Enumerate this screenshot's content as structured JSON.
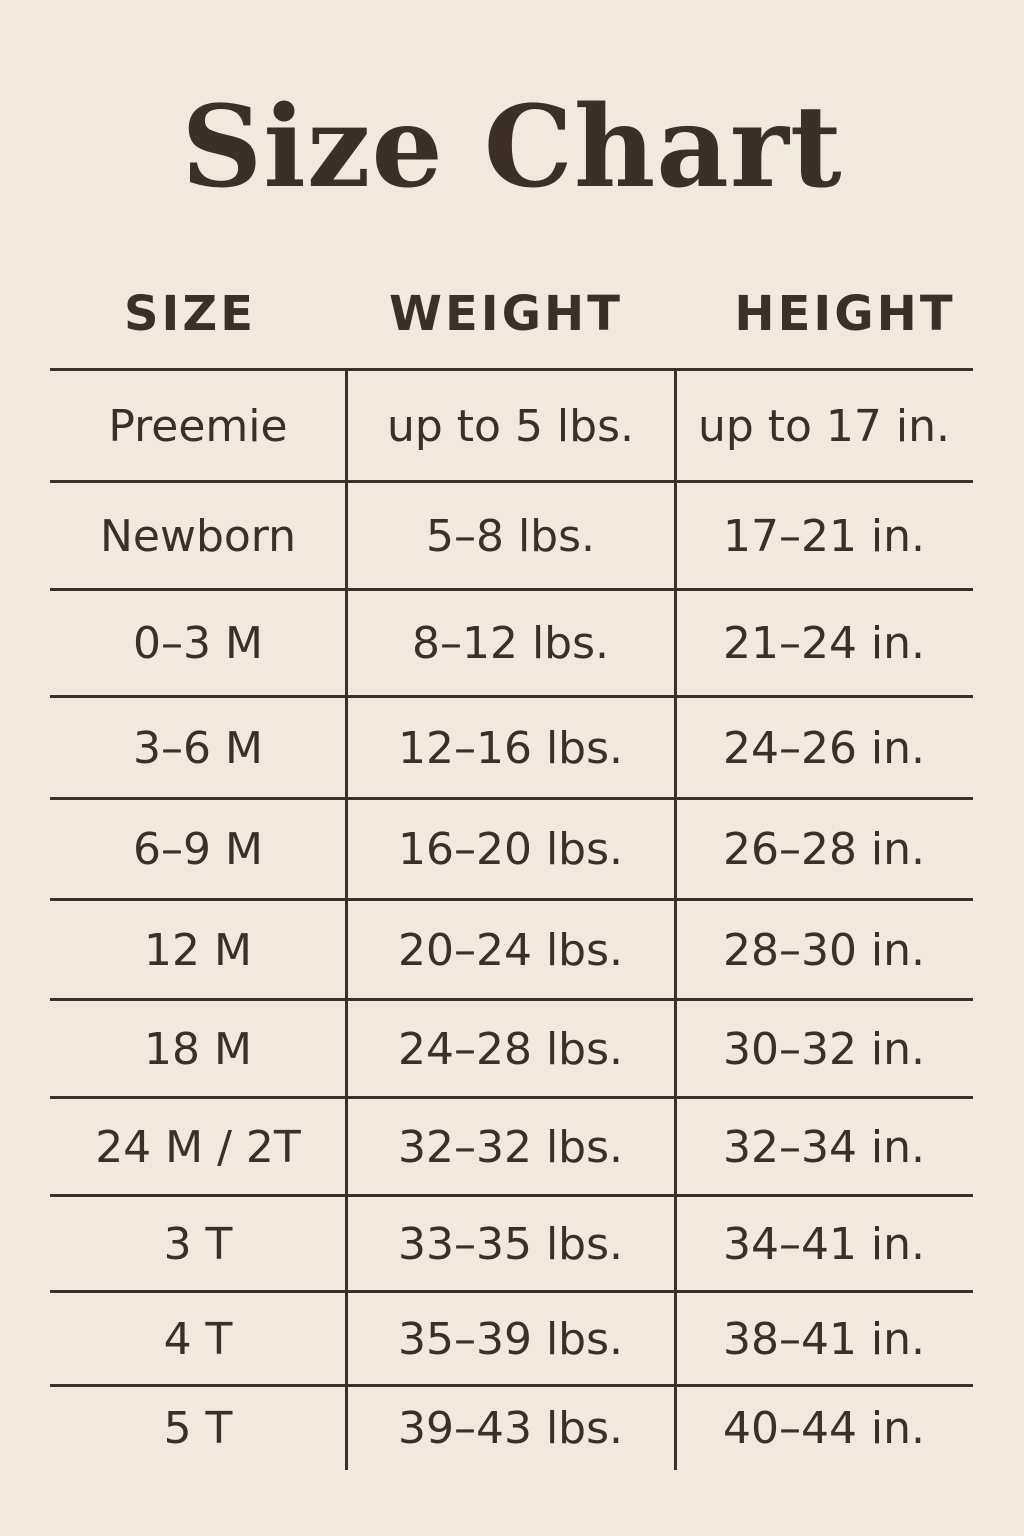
{
  "title": "Size Chart",
  "headers": [
    "SIZE",
    "WEIGHT",
    "HEIGHT"
  ],
  "rows": [
    [
      "Preemie",
      "up to 5 lbs.",
      "up to 17 in."
    ],
    [
      "Newborn",
      "5–8 lbs.",
      "17–21 in."
    ],
    [
      "0–3 M",
      "8–12 lbs.",
      "21–24 in."
    ],
    [
      "3–6 M",
      "12–16 lbs.",
      "24–26 in."
    ],
    [
      "6–9 M",
      "16–20 lbs.",
      "26–28 in."
    ],
    [
      "12 M",
      "20–24 lbs.",
      "28–30 in."
    ],
    [
      "18 M",
      "24–28 lbs.",
      "30–32 in."
    ],
    [
      "24 M / 2T",
      "32–32 lbs.",
      "32–34 in."
    ],
    [
      "3 T",
      "33–35 lbs.",
      "34–41 in."
    ],
    [
      "4 T",
      "35–39 lbs.",
      "38–41 in."
    ],
    [
      "5 T",
      "39–43 lbs.",
      "40–44 in."
    ]
  ],
  "colors": {
    "background": "#f1e9de",
    "text": "#3b2f27"
  }
}
